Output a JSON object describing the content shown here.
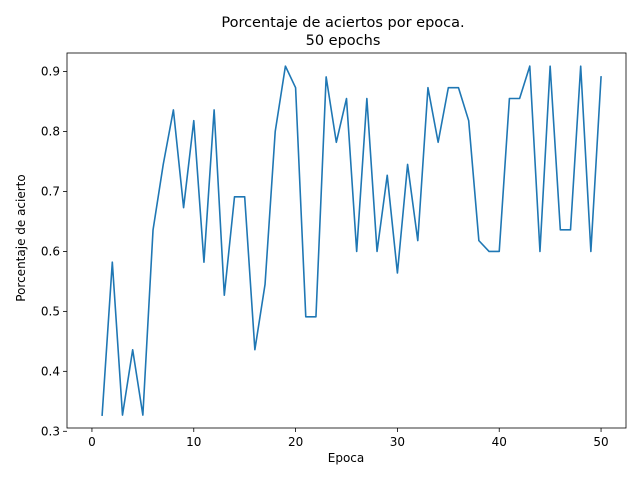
{
  "chart_data": {
    "type": "line",
    "title": "Porcentaje de aciertos por epoca.",
    "subtitle": "50 epochs",
    "xlabel": "Epoca",
    "ylabel": "Porcentaje de acierto",
    "xlim": [
      -2.45,
      52.45
    ],
    "ylim": [
      0.3055,
      0.9309
    ],
    "xticks": [
      0,
      10,
      20,
      30,
      40,
      50
    ],
    "yticks": [
      0.3,
      0.4,
      0.5,
      0.6,
      0.7,
      0.8,
      0.9
    ],
    "xtick_labels": [
      "0",
      "10",
      "20",
      "30",
      "40",
      "50"
    ],
    "ytick_labels": [
      "0.3",
      "0.4",
      "0.5",
      "0.6",
      "0.7",
      "0.8",
      "0.9"
    ],
    "grid": false,
    "legend": null,
    "series": [
      {
        "color": "#1f77b4",
        "x": [
          1,
          2,
          3,
          4,
          5,
          6,
          7,
          8,
          9,
          10,
          11,
          12,
          13,
          14,
          15,
          16,
          17,
          18,
          19,
          20,
          21,
          22,
          23,
          24,
          25,
          26,
          27,
          28,
          29,
          30,
          31,
          32,
          33,
          34,
          35,
          36,
          37,
          38,
          39,
          40,
          41,
          42,
          43,
          44,
          45,
          46,
          47,
          48,
          49,
          50
        ],
        "values": [
          0.327,
          0.582,
          0.327,
          0.436,
          0.327,
          0.636,
          0.745,
          0.836,
          0.673,
          0.818,
          0.582,
          0.836,
          0.527,
          0.691,
          0.691,
          0.436,
          0.545,
          0.8,
          0.909,
          0.873,
          0.491,
          0.491,
          0.891,
          0.782,
          0.855,
          0.6,
          0.855,
          0.6,
          0.727,
          0.564,
          0.745,
          0.618,
          0.873,
          0.782,
          0.873,
          0.873,
          0.818,
          0.618,
          0.6,
          0.6,
          0.855,
          0.855,
          0.909,
          0.6,
          0.909,
          0.636,
          0.636,
          0.909,
          0.6,
          0.891
        ]
      }
    ]
  }
}
